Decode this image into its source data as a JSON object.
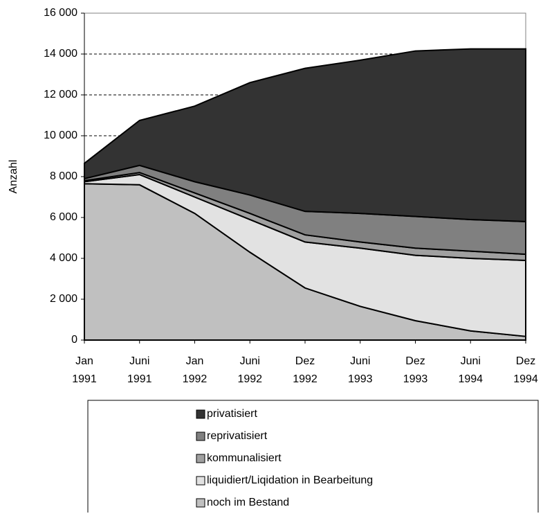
{
  "chart_data": {
    "type": "stacked_area",
    "y_label": "Anzahl",
    "categories": [
      [
        "Jan",
        "1991"
      ],
      [
        "Juni",
        "1991"
      ],
      [
        "Jan",
        "1992"
      ],
      [
        "Juni",
        "1992"
      ],
      [
        "Dez",
        "1992"
      ],
      [
        "Juni",
        "1993"
      ],
      [
        "Dez",
        "1993"
      ],
      [
        "Juni",
        "1994"
      ],
      [
        "Dez",
        "1994"
      ]
    ],
    "series": [
      {
        "name": "noch im Bestand",
        "color": "#c0c0c0",
        "values": [
          7650,
          7600,
          6200,
          4300,
          2550,
          1650,
          950,
          450,
          180
        ]
      },
      {
        "name": "liquidiert/Liqidation in Bearbeitung",
        "color": "#e2e2e2",
        "values": [
          100,
          500,
          800,
          1600,
          2250,
          2850,
          3200,
          3550,
          3720
        ]
      },
      {
        "name": "kommunalisiert",
        "color": "#a0a0a0",
        "values": [
          50,
          100,
          200,
          300,
          350,
          300,
          350,
          350,
          300
        ]
      },
      {
        "name": "reprivatisiert",
        "color": "#808080",
        "values": [
          100,
          350,
          550,
          900,
          1150,
          1400,
          1550,
          1550,
          1600
        ]
      },
      {
        "name": "privatisiert",
        "color": "#333333",
        "values": [
          750,
          2200,
          3700,
          5500,
          7000,
          7500,
          8100,
          8350,
          8450
        ]
      }
    ],
    "ylim": [
      0,
      16000
    ],
    "yticks": [
      0,
      {
        "value": 2000,
        "label": "2 000"
      },
      {
        "value": 4000,
        "label": "4 000"
      },
      {
        "value": 6000,
        "label": "6 000"
      },
      {
        "value": 8000,
        "label": "8 000"
      },
      {
        "value": 10000,
        "label": "10 000"
      },
      {
        "value": 12000,
        "label": "12 000"
      },
      {
        "value": 14000,
        "label": "14 000"
      },
      {
        "value": 16000,
        "label": "16 000"
      }
    ],
    "grid": true
  }
}
